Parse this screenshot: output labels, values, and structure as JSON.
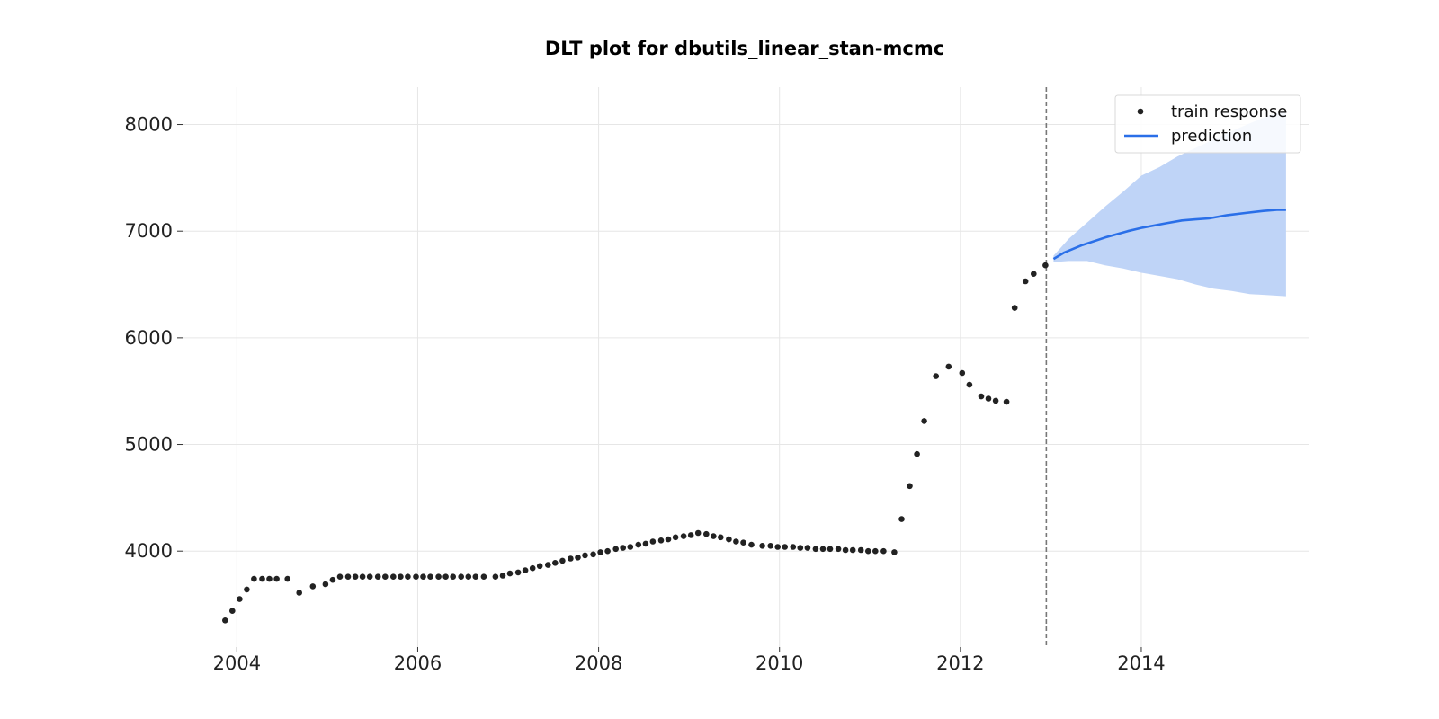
{
  "chart_data": {
    "type": "scatter",
    "title": "DLT plot for dbutils_linear_stan-mcmc",
    "xlabel": "",
    "ylabel": "",
    "x_ticks": [
      "2004",
      "2006",
      "2008",
      "2010",
      "2012",
      "2014"
    ],
    "x_tick_values": [
      2004,
      2006,
      2008,
      2010,
      2012,
      2014
    ],
    "y_ticks": [
      "4000",
      "5000",
      "6000",
      "7000",
      "8000"
    ],
    "y_tick_values": [
      4000,
      5000,
      6000,
      7000,
      8000
    ],
    "xlim": [
      2003.4,
      2015.85
    ],
    "ylim": [
      3100,
      8350
    ],
    "grid": true,
    "legend_position": "top-right",
    "split_date": 2012.95,
    "colors": {
      "train": "#222222",
      "prediction": "#2a6fe8",
      "band": "#bfd4f7",
      "split_line": "#777777"
    },
    "series": [
      {
        "name": "train response",
        "kind": "scatter",
        "points": [
          [
            2003.87,
            3350
          ],
          [
            2003.95,
            3440
          ],
          [
            2004.03,
            3550
          ],
          [
            2004.11,
            3640
          ],
          [
            2004.19,
            3740
          ],
          [
            2004.28,
            3740
          ],
          [
            2004.36,
            3740
          ],
          [
            2004.44,
            3740
          ],
          [
            2004.56,
            3740
          ],
          [
            2004.69,
            3610
          ],
          [
            2004.84,
            3670
          ],
          [
            2004.98,
            3690
          ],
          [
            2005.06,
            3730
          ],
          [
            2005.14,
            3760
          ],
          [
            2005.23,
            3760
          ],
          [
            2005.31,
            3760
          ],
          [
            2005.39,
            3760
          ],
          [
            2005.47,
            3760
          ],
          [
            2005.56,
            3760
          ],
          [
            2005.64,
            3760
          ],
          [
            2005.73,
            3760
          ],
          [
            2005.81,
            3760
          ],
          [
            2005.89,
            3760
          ],
          [
            2005.98,
            3760
          ],
          [
            2006.06,
            3760
          ],
          [
            2006.14,
            3760
          ],
          [
            2006.23,
            3760
          ],
          [
            2006.31,
            3760
          ],
          [
            2006.39,
            3760
          ],
          [
            2006.48,
            3760
          ],
          [
            2006.56,
            3760
          ],
          [
            2006.64,
            3760
          ],
          [
            2006.73,
            3760
          ],
          [
            2006.86,
            3760
          ],
          [
            2006.94,
            3770
          ],
          [
            2007.02,
            3790
          ],
          [
            2007.11,
            3800
          ],
          [
            2007.19,
            3820
          ],
          [
            2007.27,
            3840
          ],
          [
            2007.35,
            3860
          ],
          [
            2007.44,
            3870
          ],
          [
            2007.52,
            3890
          ],
          [
            2007.6,
            3910
          ],
          [
            2007.69,
            3930
          ],
          [
            2007.77,
            3940
          ],
          [
            2007.85,
            3960
          ],
          [
            2007.94,
            3970
          ],
          [
            2008.02,
            3990
          ],
          [
            2008.1,
            4000
          ],
          [
            2008.19,
            4020
          ],
          [
            2008.27,
            4030
          ],
          [
            2008.35,
            4040
          ],
          [
            2008.44,
            4060
          ],
          [
            2008.52,
            4070
          ],
          [
            2008.6,
            4090
          ],
          [
            2008.69,
            4100
          ],
          [
            2008.77,
            4110
          ],
          [
            2008.85,
            4130
          ],
          [
            2008.94,
            4140
          ],
          [
            2009.02,
            4150
          ],
          [
            2009.1,
            4170
          ],
          [
            2009.19,
            4160
          ],
          [
            2009.27,
            4140
          ],
          [
            2009.35,
            4130
          ],
          [
            2009.44,
            4110
          ],
          [
            2009.52,
            4090
          ],
          [
            2009.6,
            4080
          ],
          [
            2009.69,
            4060
          ],
          [
            2009.81,
            4050
          ],
          [
            2009.9,
            4050
          ],
          [
            2009.98,
            4040
          ],
          [
            2010.06,
            4040
          ],
          [
            2010.15,
            4040
          ],
          [
            2010.23,
            4030
          ],
          [
            2010.31,
            4030
          ],
          [
            2010.4,
            4020
          ],
          [
            2010.48,
            4020
          ],
          [
            2010.56,
            4020
          ],
          [
            2010.65,
            4020
          ],
          [
            2010.73,
            4010
          ],
          [
            2010.81,
            4010
          ],
          [
            2010.9,
            4010
          ],
          [
            2010.98,
            4000
          ],
          [
            2011.06,
            4000
          ],
          [
            2011.15,
            4000
          ],
          [
            2011.27,
            3990
          ],
          [
            2011.35,
            4300
          ],
          [
            2011.44,
            4610
          ],
          [
            2011.52,
            4910
          ],
          [
            2011.6,
            5220
          ],
          [
            2011.73,
            5640
          ],
          [
            2011.87,
            5730
          ],
          [
            2012.02,
            5670
          ],
          [
            2012.1,
            5560
          ],
          [
            2012.23,
            5450
          ],
          [
            2012.31,
            5430
          ],
          [
            2012.39,
            5410
          ],
          [
            2012.51,
            5400
          ],
          [
            2012.6,
            6280
          ],
          [
            2012.72,
            6530
          ],
          [
            2012.81,
            6600
          ],
          [
            2012.94,
            6680
          ]
        ]
      },
      {
        "name": "prediction",
        "kind": "line",
        "points": [
          [
            2013.03,
            6740
          ],
          [
            2013.15,
            6800
          ],
          [
            2013.35,
            6870
          ],
          [
            2013.6,
            6940
          ],
          [
            2013.85,
            7000
          ],
          [
            2014.0,
            7030
          ],
          [
            2014.25,
            7070
          ],
          [
            2014.45,
            7100
          ],
          [
            2014.6,
            7110
          ],
          [
            2014.75,
            7120
          ],
          [
            2014.95,
            7150
          ],
          [
            2015.15,
            7170
          ],
          [
            2015.35,
            7190
          ],
          [
            2015.5,
            7200
          ],
          [
            2015.6,
            7200
          ]
        ]
      }
    ],
    "band": {
      "x": [
        2013.03,
        2013.2,
        2013.4,
        2013.6,
        2013.8,
        2014.0,
        2014.2,
        2014.4,
        2014.6,
        2014.8,
        2015.0,
        2015.2,
        2015.4,
        2015.6
      ],
      "upper": [
        6770,
        6930,
        7080,
        7230,
        7370,
        7520,
        7600,
        7700,
        7780,
        7860,
        7940,
        8010,
        8080,
        8130
      ],
      "lower": [
        6710,
        6720,
        6720,
        6680,
        6650,
        6610,
        6580,
        6550,
        6500,
        6460,
        6440,
        6410,
        6400,
        6390
      ]
    }
  }
}
